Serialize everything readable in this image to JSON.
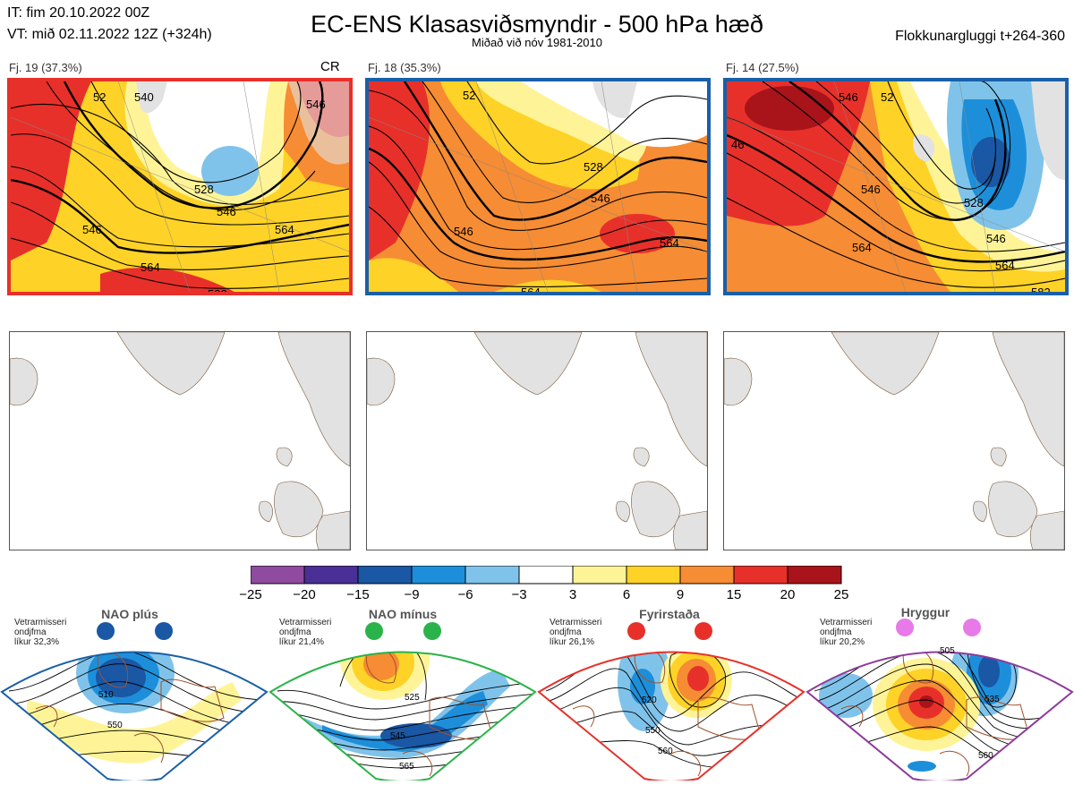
{
  "header": {
    "it": "IT: fim 20.10.2022 00Z",
    "vt": "VT: mið 02.11.2022 12Z  (+324h)",
    "title": "EC-ENS Klasasviðsmyndir - 500 hPa hæð",
    "subtitle": "Miðað við nóv 1981-2010",
    "window": "Flokkunargluggi t+264-360"
  },
  "panels": [
    {
      "label": "Fj. 19 (37.3%)",
      "tag": "CR",
      "border_color": "#e8302a",
      "contour_labels": [
        "540",
        "528",
        "546",
        "546",
        "564",
        "564",
        "582",
        "52",
        "546"
      ]
    },
    {
      "label": "Fj. 18 (35.3%)",
      "tag": "",
      "border_color": "#1a5fa8",
      "contour_labels": [
        "528",
        "546",
        "546",
        "564",
        "564",
        "52"
      ]
    },
    {
      "label": "Fj. 14 (27.5%)",
      "tag": "",
      "border_color": "#1a5fa8",
      "contour_labels": [
        "546",
        "52",
        "46",
        "546",
        "528",
        "546",
        "564",
        "564",
        "582"
      ]
    }
  ],
  "colorbar": {
    "ticks": [
      "−25",
      "−20",
      "−15",
      "−9",
      "−6",
      "−3",
      "3",
      "6",
      "9",
      "15",
      "20",
      "25"
    ],
    "colors": [
      "#8e4ba0",
      "#4a2f96",
      "#1a57a4",
      "#1d8fda",
      "#80c3ea",
      "#ffffff",
      "#fef497",
      "#fed227",
      "#f68c33",
      "#e8302a",
      "#a8141a"
    ]
  },
  "regimes": [
    {
      "name": "NAO plús",
      "info": [
        "Vetrarmisseri",
        "ondjfma",
        "líkur 32,3%"
      ],
      "dot_color": "#1a57a4",
      "border_color": "#1a5fa8",
      "contour_labels": [
        "510",
        "550"
      ]
    },
    {
      "name": "NAO mínus",
      "info": [
        "Vetrarmisseri",
        "ondjfma",
        "líkur 21,4%"
      ],
      "dot_color": "#2ab34a",
      "border_color": "#2ab34a",
      "contour_labels": [
        "525",
        "545",
        "565"
      ]
    },
    {
      "name": "Fyrirstaða",
      "info": [
        "Vetrarmisseri",
        "ondjfma",
        "líkur 26,1%"
      ],
      "dot_color": "#e8302a",
      "border_color": "#e8302a",
      "contour_labels": [
        "520",
        "550",
        "560"
      ]
    },
    {
      "name": "Hryggur",
      "info": [
        "Vetrarmisseri",
        "ondjfma",
        "líkur 20,2%"
      ],
      "dot_color": "#e879e8",
      "border_color": "#8e3b9a",
      "contour_labels": [
        "505",
        "535",
        "560"
      ]
    }
  ]
}
